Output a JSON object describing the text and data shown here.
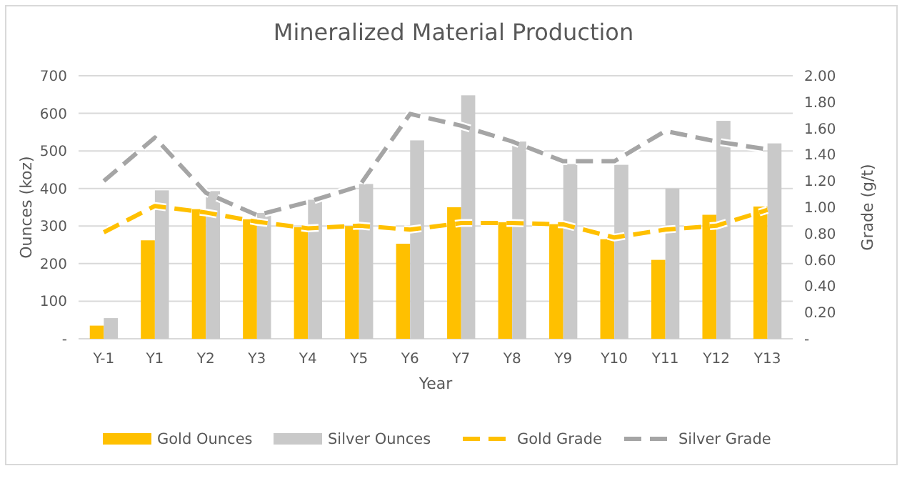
{
  "chart_data": {
    "type": "bar",
    "title": "Mineralized Material Production",
    "xlabel": "Year",
    "ylabel": "Ounces (koz)",
    "y2label": "Grade (g/t)",
    "categories": [
      "Y-1",
      "Y1",
      "Y2",
      "Y3",
      "Y4",
      "Y5",
      "Y6",
      "Y7",
      "Y8",
      "Y9",
      "Y10",
      "Y11",
      "Y12",
      "Y13"
    ],
    "series": [
      {
        "name": "Gold Ounces",
        "color": "#ffc000",
        "values": [
          35,
          262,
          345,
          318,
          297,
          300,
          253,
          350,
          310,
          305,
          265,
          210,
          330,
          352
        ]
      },
      {
        "name": "Silver Ounces",
        "color": "#c9c9c9",
        "values": [
          55,
          395,
          393,
          335,
          370,
          412,
          528,
          648,
          525,
          465,
          463,
          400,
          580,
          520
        ]
      },
      {
        "name": "Gold Grade",
        "type": "line",
        "axis": "y2",
        "line_style": "dashed",
        "color": "#ffc000",
        "values": [
          0.81,
          1.01,
          0.96,
          0.89,
          0.84,
          0.86,
          0.83,
          0.88,
          0.88,
          0.87,
          0.77,
          0.83,
          0.86,
          0.98
        ]
      },
      {
        "name": "Silver Grade",
        "type": "line",
        "axis": "y2",
        "line_style": "dashed",
        "color": "#a5a5a5",
        "values": [
          1.2,
          1.53,
          1.11,
          0.94,
          1.04,
          1.16,
          1.71,
          1.62,
          1.5,
          1.35,
          1.35,
          1.58,
          1.5,
          1.44
        ]
      }
    ],
    "ylim": [
      0,
      700
    ],
    "yticks": [
      {
        "value": 0,
        "label": "-"
      },
      100,
      200,
      300,
      400,
      500,
      600,
      700
    ],
    "y2lim": [
      0,
      2
    ],
    "y2ticks": [
      {
        "value": 0,
        "label": "-"
      },
      {
        "value": 0.2,
        "label": "0.20"
      },
      {
        "value": 0.4,
        "label": "0.40"
      },
      {
        "value": 0.6,
        "label": "0.60"
      },
      {
        "value": 0.8,
        "label": "0.80"
      },
      {
        "value": 1,
        "label": "1.00"
      },
      {
        "value": 1.2,
        "label": "1.20"
      },
      {
        "value": 1.4,
        "label": "1.40"
      },
      {
        "value": 1.6,
        "label": "1.60"
      },
      {
        "value": 1.8,
        "label": "1.80"
      },
      {
        "value": 2,
        "label": "2.00"
      }
    ],
    "grid": "y",
    "legend": "bottom"
  }
}
